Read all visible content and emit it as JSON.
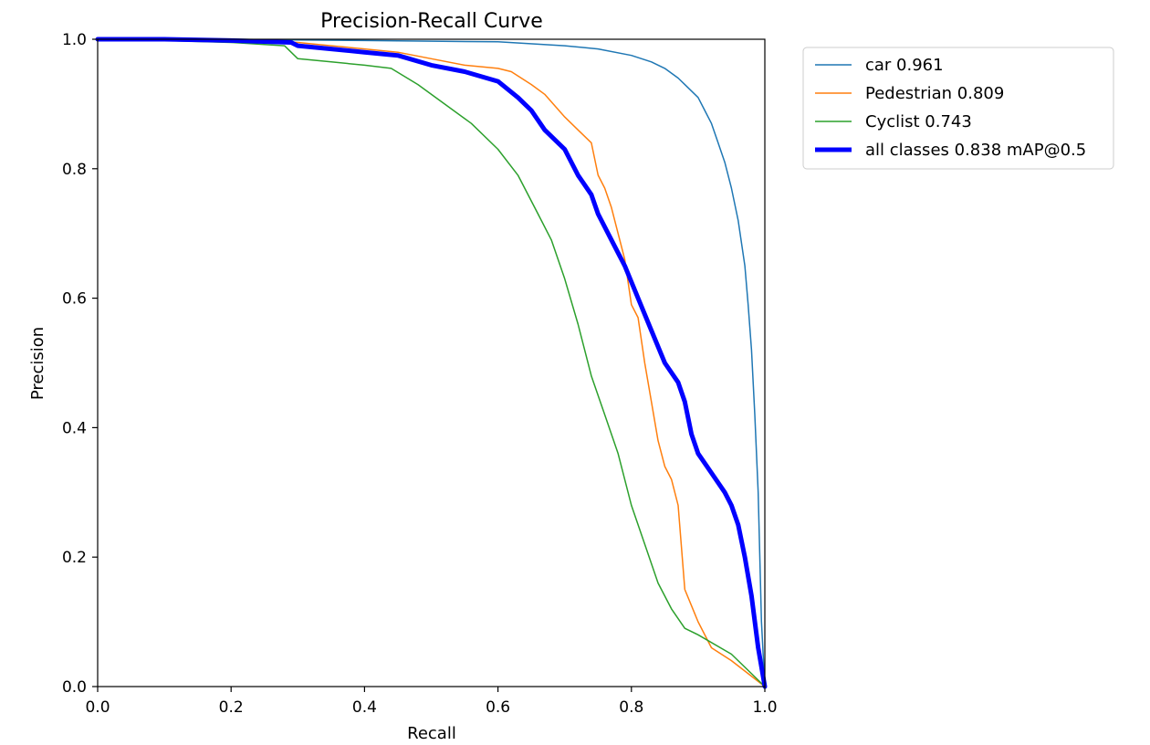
{
  "chart_data": {
    "type": "line",
    "title": "Precision-Recall Curve",
    "xlabel": "Recall",
    "ylabel": "Precision",
    "xlim": [
      0.0,
      1.0
    ],
    "ylim": [
      0.0,
      1.0
    ],
    "xticks": [
      "0.0",
      "0.2",
      "0.4",
      "0.6",
      "0.8",
      "1.0"
    ],
    "yticks": [
      "0.0",
      "0.2",
      "0.4",
      "0.6",
      "0.8",
      "1.0"
    ],
    "grid": false,
    "legend_position": "outside-top-right",
    "series": [
      {
        "name": "car 0.961",
        "color": "#1f77b4",
        "width": "thin",
        "x": [
          0.0,
          0.1,
          0.2,
          0.3,
          0.4,
          0.5,
          0.6,
          0.7,
          0.75,
          0.8,
          0.83,
          0.85,
          0.87,
          0.88,
          0.9,
          0.91,
          0.92,
          0.93,
          0.94,
          0.95,
          0.96,
          0.97,
          0.975,
          0.98,
          0.985,
          0.99,
          0.995,
          1.0
        ],
        "y": [
          1.0,
          1.0,
          1.0,
          0.999,
          0.998,
          0.997,
          0.996,
          0.99,
          0.985,
          0.975,
          0.965,
          0.955,
          0.94,
          0.93,
          0.91,
          0.89,
          0.87,
          0.84,
          0.81,
          0.77,
          0.72,
          0.65,
          0.59,
          0.52,
          0.42,
          0.3,
          0.1,
          0.0
        ]
      },
      {
        "name": "Pedestrian 0.809",
        "color": "#ff7f0e",
        "width": "thin",
        "x": [
          0.0,
          0.1,
          0.2,
          0.3,
          0.35,
          0.4,
          0.45,
          0.5,
          0.55,
          0.6,
          0.62,
          0.65,
          0.67,
          0.7,
          0.72,
          0.74,
          0.75,
          0.76,
          0.77,
          0.78,
          0.79,
          0.8,
          0.81,
          0.82,
          0.83,
          0.84,
          0.85,
          0.86,
          0.87,
          0.88,
          0.9,
          0.92,
          0.95,
          1.0
        ],
        "y": [
          1.0,
          1.0,
          1.0,
          0.995,
          0.99,
          0.985,
          0.98,
          0.97,
          0.96,
          0.955,
          0.95,
          0.93,
          0.915,
          0.88,
          0.86,
          0.84,
          0.79,
          0.77,
          0.74,
          0.7,
          0.66,
          0.59,
          0.57,
          0.5,
          0.44,
          0.38,
          0.34,
          0.32,
          0.28,
          0.15,
          0.1,
          0.06,
          0.04,
          0.0
        ]
      },
      {
        "name": "Cyclist 0.743",
        "color": "#2ca02c",
        "width": "thin",
        "x": [
          0.0,
          0.1,
          0.2,
          0.28,
          0.3,
          0.35,
          0.4,
          0.44,
          0.48,
          0.52,
          0.56,
          0.6,
          0.63,
          0.66,
          0.68,
          0.7,
          0.72,
          0.74,
          0.76,
          0.78,
          0.8,
          0.82,
          0.84,
          0.86,
          0.88,
          0.9,
          0.95,
          1.0
        ],
        "y": [
          1.0,
          0.998,
          0.995,
          0.99,
          0.97,
          0.965,
          0.96,
          0.955,
          0.93,
          0.9,
          0.87,
          0.83,
          0.79,
          0.73,
          0.69,
          0.63,
          0.56,
          0.48,
          0.42,
          0.36,
          0.28,
          0.22,
          0.16,
          0.12,
          0.09,
          0.08,
          0.05,
          0.0
        ]
      },
      {
        "name": "all classes 0.838 mAP@0.5",
        "color": "#0000ff",
        "width": "thick",
        "x": [
          0.0,
          0.1,
          0.2,
          0.29,
          0.3,
          0.35,
          0.4,
          0.45,
          0.5,
          0.55,
          0.6,
          0.63,
          0.65,
          0.67,
          0.7,
          0.72,
          0.74,
          0.75,
          0.77,
          0.79,
          0.81,
          0.83,
          0.85,
          0.87,
          0.88,
          0.89,
          0.9,
          0.92,
          0.94,
          0.95,
          0.96,
          0.97,
          0.98,
          0.99,
          1.0
        ],
        "y": [
          1.0,
          1.0,
          0.998,
          0.995,
          0.99,
          0.985,
          0.98,
          0.975,
          0.96,
          0.95,
          0.935,
          0.91,
          0.89,
          0.86,
          0.83,
          0.79,
          0.76,
          0.73,
          0.69,
          0.65,
          0.6,
          0.55,
          0.5,
          0.47,
          0.44,
          0.39,
          0.36,
          0.33,
          0.3,
          0.28,
          0.25,
          0.2,
          0.14,
          0.06,
          0.0
        ]
      }
    ]
  }
}
